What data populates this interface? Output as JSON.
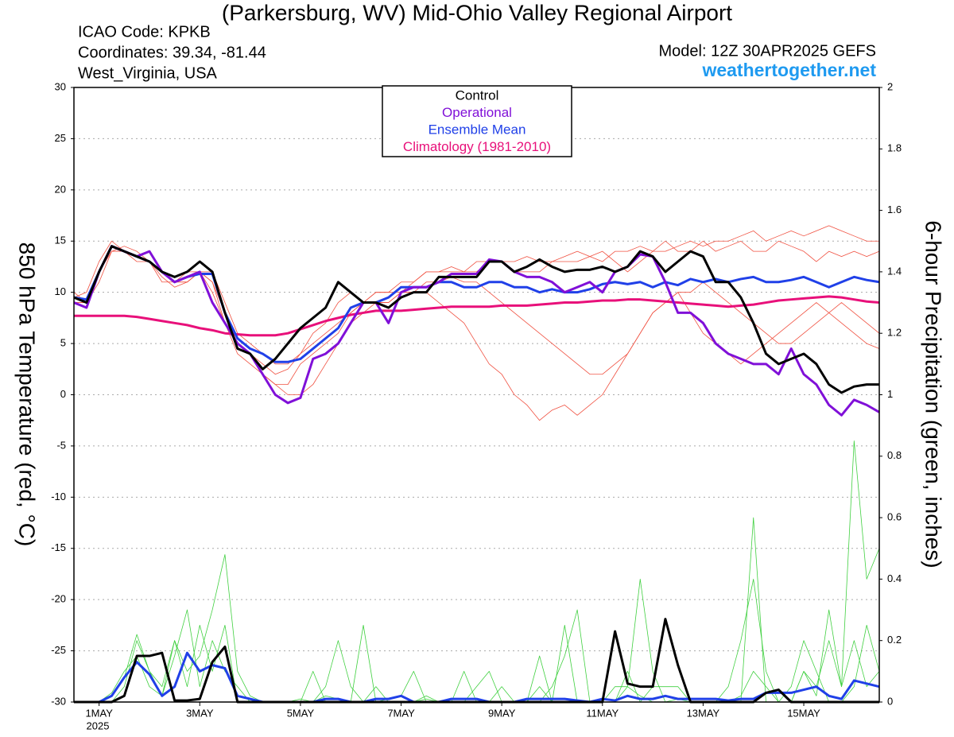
{
  "chart_data": {
    "type": "line",
    "title": "(Parkersburg, WV) Mid-Ohio Valley Regional Airport",
    "icao": "ICAO Code: KPKB",
    "coordinates": "Coordinates: 39.34, -81.44",
    "location": "West_Virginia, USA",
    "model": "Model: 12Z 30APR2025 GEFS",
    "source": "weathertogether.net",
    "y_label": "850 hPa Temperature (red, °C)",
    "y2_label": "6-hour Precipitation (green, inches)",
    "x_year_label": "2025",
    "categories": [
      null,
      null,
      "1MAY",
      null,
      null,
      null,
      null,
      null,
      null,
      null,
      "3MAY",
      null,
      null,
      null,
      null,
      null,
      null,
      null,
      "5MAY",
      null,
      null,
      null,
      null,
      null,
      null,
      null,
      "7MAY",
      null,
      null,
      null,
      null,
      null,
      null,
      null,
      "9MAY",
      null,
      null,
      null,
      null,
      null,
      null,
      null,
      "11MAY",
      null,
      null,
      null,
      null,
      null,
      null,
      null,
      "13MAY",
      null,
      null,
      null,
      null,
      null,
      null,
      null,
      "15MAY",
      null,
      null,
      null,
      null,
      null,
      null
    ],
    "ylim": [
      -30,
      30
    ],
    "yticks": [
      -30,
      -25,
      -20,
      -15,
      -10,
      -5,
      0,
      5,
      10,
      15,
      20,
      25,
      30
    ],
    "y2lim": [
      0,
      2
    ],
    "y2ticks": [
      0,
      0.2,
      0.4,
      0.6,
      0.8,
      1,
      1.2,
      1.4,
      1.6,
      1.8,
      2
    ],
    "grid": true,
    "series": [
      {
        "name": "Climatology (1981-2010)",
        "color": "#e8107a",
        "values": [
          7.7,
          7.7,
          7.7,
          7.7,
          7.7,
          7.6,
          7.4,
          7.2,
          7,
          6.8,
          6.5,
          6.3,
          6,
          5.9,
          5.8,
          5.8,
          5.8,
          6,
          6.4,
          6.8,
          7.2,
          7.5,
          7.8,
          8,
          8.2,
          8.2,
          8.2,
          8.3,
          8.4,
          8.5,
          8.6,
          8.6,
          8.6,
          8.6,
          8.7,
          8.7,
          8.7,
          8.8,
          8.9,
          9,
          9,
          9.1,
          9.2,
          9.2,
          9.3,
          9.3,
          9.2,
          9.1,
          9,
          8.9,
          8.8,
          8.7,
          8.6,
          8.7,
          8.8,
          9,
          9.2,
          9.3,
          9.4,
          9.5,
          9.6,
          9.5,
          9.3,
          9.1,
          9
        ]
      },
      {
        "name": "Ensemble Mean",
        "color": "#2040e8",
        "values": [
          9.5,
          9.3,
          12,
          14.5,
          14,
          13.5,
          13,
          12,
          11,
          11.5,
          11.8,
          11.8,
          8,
          5.5,
          4.5,
          4,
          3.2,
          3.2,
          3.5,
          4.5,
          5.5,
          6.5,
          8.5,
          9,
          9,
          9.5,
          10.5,
          10.5,
          10.5,
          11,
          11,
          10.5,
          10.5,
          11,
          11,
          10.5,
          10.5,
          10,
          10.3,
          10,
          10,
          10.3,
          10.8,
          11,
          10.8,
          11,
          10.5,
          11,
          10.7,
          11.3,
          11,
          11.3,
          11,
          11.3,
          11.5,
          11,
          11,
          11.2,
          11.5,
          11,
          10.5,
          11,
          11.5,
          11.2,
          11
        ]
      },
      {
        "name": "Operational",
        "color": "#8010d8",
        "values": [
          9,
          8.5,
          12,
          14.5,
          14,
          13.5,
          14,
          12,
          11,
          11.5,
          12,
          9,
          7,
          5,
          4,
          2,
          0,
          -0.8,
          -0.3,
          3.5,
          4,
          5,
          7,
          9,
          9,
          7,
          10,
          10.5,
          10.5,
          11,
          11.8,
          11.8,
          11.8,
          13.2,
          13,
          12,
          11.5,
          11.5,
          11,
          10,
          10.5,
          11,
          10,
          12,
          12.5,
          13.7,
          13.5,
          11,
          8,
          8,
          7,
          5,
          4,
          3.5,
          3,
          3,
          2,
          4.5,
          2,
          1,
          -1,
          -2,
          -0.5,
          -1,
          -1.7
        ]
      },
      {
        "name": "Control",
        "color": "#000000",
        "values": [
          9.5,
          9,
          12,
          14.5,
          14,
          13.5,
          13,
          12,
          11.5,
          12,
          13,
          12,
          8,
          4.5,
          4,
          2.5,
          3.5,
          5,
          6.5,
          7.5,
          8.5,
          11,
          10,
          9,
          9,
          8.5,
          9.5,
          10,
          10,
          11.5,
          11.5,
          11.5,
          11.5,
          13,
          13,
          12,
          12.5,
          13.2,
          12.5,
          12,
          12.2,
          12.2,
          12.5,
          12,
          12.5,
          14,
          13.5,
          12,
          13,
          14,
          13.5,
          11,
          11,
          9.5,
          7,
          4,
          3,
          3.5,
          4,
          3,
          1,
          0.2,
          0.8,
          1,
          1
        ]
      }
    ],
    "member_series": [
      {
        "color": "#f05040",
        "values": [
          9.5,
          10,
          13,
          15,
          14,
          13.5,
          13,
          12,
          11,
          12,
          12,
          10,
          7,
          5,
          4,
          3,
          2,
          2.5,
          4,
          5,
          6,
          7,
          8,
          9,
          10,
          10,
          11,
          11,
          12,
          12,
          12.5,
          12,
          12,
          13,
          13,
          13,
          13.5,
          13,
          13,
          13.5,
          14,
          13.5,
          13,
          14,
          14,
          14.5,
          14,
          14,
          14.5,
          15,
          14.5,
          15,
          15,
          15.5,
          16,
          15,
          15.5,
          16,
          15.5,
          16,
          16.5,
          16,
          15.5,
          15,
          15
        ]
      },
      {
        "color": "#f05040",
        "values": [
          9,
          9,
          12,
          14,
          14,
          13,
          13,
          11,
          11,
          11,
          12,
          11,
          8,
          5,
          4,
          2,
          1,
          0,
          0,
          1,
          3,
          5,
          7,
          8,
          9,
          9,
          10,
          10,
          10,
          9,
          8,
          7,
          5,
          3,
          2,
          0,
          -1,
          -2.5,
          -1.5,
          -1,
          -2,
          -1,
          0,
          2,
          4,
          6,
          8,
          9,
          10,
          10,
          11,
          10,
          9,
          8,
          7,
          6,
          5,
          5,
          6,
          7,
          8,
          9,
          8,
          7,
          6
        ]
      },
      {
        "color": "#f05040",
        "values": [
          9,
          9,
          11,
          14,
          14.5,
          14,
          13,
          12,
          11,
          11,
          12,
          12,
          9,
          6,
          5,
          4,
          3,
          3,
          4,
          6,
          7,
          9,
          10,
          9,
          10,
          10,
          10,
          11,
          12,
          12,
          12,
          12,
          13,
          13,
          13,
          12,
          12,
          12,
          13,
          13,
          13,
          13.5,
          14,
          13,
          12,
          13,
          14,
          15,
          14,
          14,
          15,
          14,
          14.5,
          15,
          14,
          14,
          15,
          14.5,
          14,
          13,
          14,
          13.5,
          14,
          13.5,
          14
        ]
      },
      {
        "color": "#f05040",
        "values": [
          10,
          9,
          12,
          14,
          14,
          13.5,
          13,
          11.5,
          10.5,
          11,
          12,
          11,
          7,
          4,
          3,
          2,
          1,
          1,
          3,
          4,
          5,
          6,
          8,
          9,
          9,
          9,
          10,
          10,
          11,
          11,
          11.5,
          11,
          11,
          10,
          9,
          8,
          7,
          6,
          5,
          4,
          3,
          2,
          2,
          3,
          4,
          6,
          8,
          9,
          10,
          8,
          6,
          5,
          4,
          3,
          4,
          5,
          6,
          7,
          8,
          9,
          8,
          7,
          6,
          5,
          4.5
        ]
      }
    ],
    "precip_members": [
      {
        "color": "#40d040",
        "values": [
          0,
          0,
          0,
          0.03,
          0.1,
          0.15,
          0.05,
          0.02,
          0.2,
          0.1,
          0.15,
          0.3,
          0.48,
          0.1,
          0.02,
          0,
          0,
          0,
          0,
          0,
          0.02,
          0.01,
          0,
          0,
          0.05,
          0,
          0,
          0,
          0.01,
          0,
          0,
          0.1,
          0,
          0,
          0,
          0,
          0,
          0.15,
          0,
          0,
          0,
          0,
          0,
          0,
          0.05,
          0.02,
          0,
          0,
          0.01,
          0,
          0,
          0,
          0.05,
          0.2,
          0.4,
          0.1,
          0,
          0,
          0.1,
          0.05,
          0.2,
          0.05,
          0.2,
          0.05,
          0.1
        ]
      },
      {
        "color": "#40d040",
        "values": [
          0,
          0,
          0,
          0,
          0.05,
          0.2,
          0.1,
          0.02,
          0.15,
          0.3,
          0.05,
          0.2,
          0.1,
          0.05,
          0,
          0,
          0,
          0,
          0.01,
          0,
          0.05,
          0.2,
          0.05,
          0,
          0,
          0.01,
          0.02,
          0.1,
          0,
          0,
          0,
          0,
          0.05,
          0.1,
          0,
          0,
          0,
          0,
          0.05,
          0.15,
          0.3,
          0,
          0,
          0.05,
          0.05,
          0.4,
          0.1,
          0,
          0,
          0,
          0,
          0,
          0,
          0.02,
          0.1,
          0.05,
          0,
          0,
          0.1,
          0.02,
          0.3,
          0.05,
          0.85,
          0.4,
          0.5
        ]
      },
      {
        "color": "#40d040",
        "values": [
          0,
          0,
          0,
          0.02,
          0.08,
          0.22,
          0.1,
          0.05,
          0.2,
          0.05,
          0.25,
          0.1,
          0.25,
          0,
          0,
          0,
          0,
          0,
          0,
          0.1,
          0,
          0,
          0,
          0.25,
          0,
          0,
          0,
          0,
          0.02,
          0,
          0,
          0,
          0,
          0,
          0.05,
          0,
          0,
          0.05,
          0,
          0.25,
          0,
          0,
          0,
          0,
          0.1,
          0,
          0.05,
          0.05,
          0.05,
          0,
          0,
          0,
          0,
          0,
          0.6,
          0,
          0,
          0.05,
          0.2,
          0.1,
          0,
          0,
          0.05,
          0.25,
          0.1
        ]
      }
    ],
    "precip_series": [
      {
        "color": "#2040e8",
        "values": [
          0,
          0,
          0,
          0.02,
          0.08,
          0.13,
          0.09,
          0.02,
          0.05,
          0.16,
          0.1,
          0.12,
          0.11,
          0.02,
          0.01,
          0,
          0,
          0,
          0,
          0,
          0.01,
          0.01,
          0,
          0,
          0.01,
          0.01,
          0.02,
          0,
          0,
          0,
          0.01,
          0.01,
          0.01,
          0,
          0,
          0,
          0.01,
          0.01,
          0.01,
          0.01,
          0.005,
          0,
          0.01,
          0.005,
          0.02,
          0.01,
          0.01,
          0.02,
          0.01,
          0.01,
          0.01,
          0.01,
          0.005,
          0.01,
          0.01,
          0.03,
          0.03,
          0.03,
          0.04,
          0.05,
          0.02,
          0.01,
          0.07,
          0.06,
          0.05
        ]
      },
      {
        "color": "#000000",
        "values": [
          0,
          0,
          0,
          0,
          0.02,
          0.15,
          0.15,
          0.16,
          0.005,
          0.005,
          0.01,
          0.13,
          0.18,
          0,
          0,
          0,
          0,
          0,
          0,
          0,
          0,
          0,
          0,
          0,
          0,
          0,
          0,
          0,
          0,
          0,
          0,
          0,
          0,
          0,
          0,
          0,
          0,
          0,
          0,
          0,
          0,
          0,
          0,
          0.23,
          0.06,
          0.05,
          0.05,
          0.27,
          0.12,
          0,
          0,
          0,
          0,
          0,
          0,
          0.03,
          0.04,
          0,
          0,
          0,
          0,
          0,
          0,
          0,
          0
        ]
      }
    ]
  }
}
